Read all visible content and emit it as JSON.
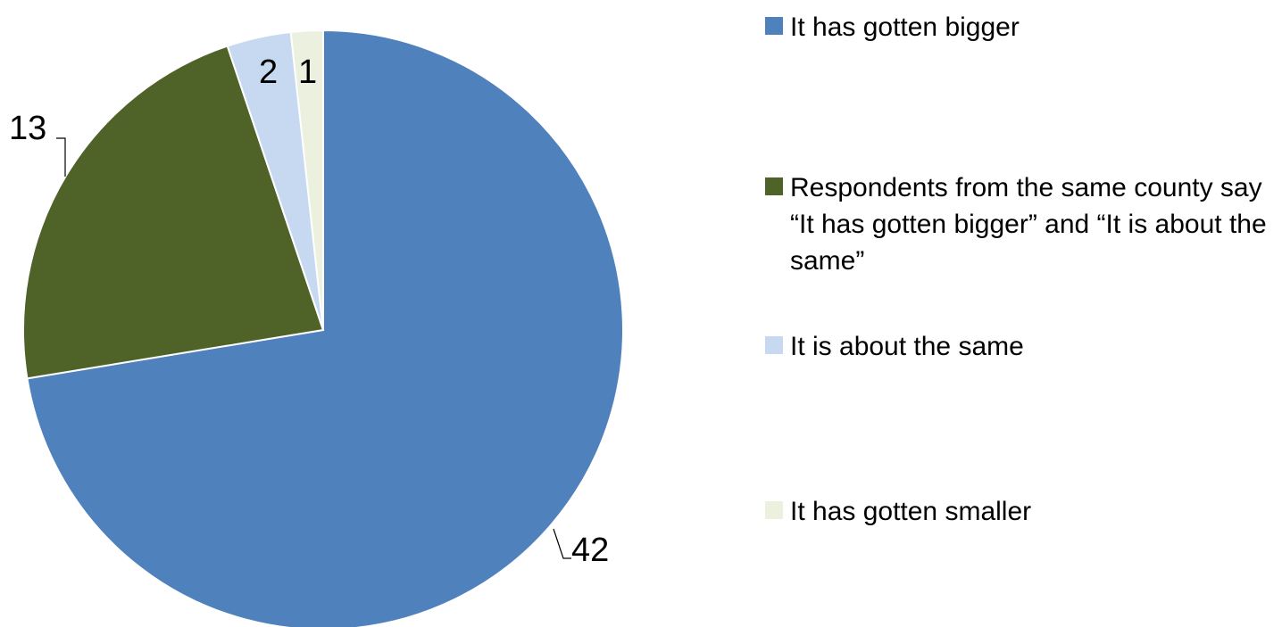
{
  "chart_data": {
    "type": "pie",
    "title": "",
    "start_angle_deg": 0,
    "direction": "clockwise",
    "slices": [
      {
        "label": "It has gotten bigger",
        "value": 42,
        "color": "#4F81BD"
      },
      {
        "label": "Respondents from the same county say “It has gotten bigger” and “It is about the same”",
        "value": 13,
        "color": "#4F6228"
      },
      {
        "label": "It is about the same",
        "value": 2,
        "color": "#C6D9F1"
      },
      {
        "label": "It has gotten smaller",
        "value": 1,
        "color": "#EBF1DE"
      }
    ],
    "legend_position": "right"
  }
}
